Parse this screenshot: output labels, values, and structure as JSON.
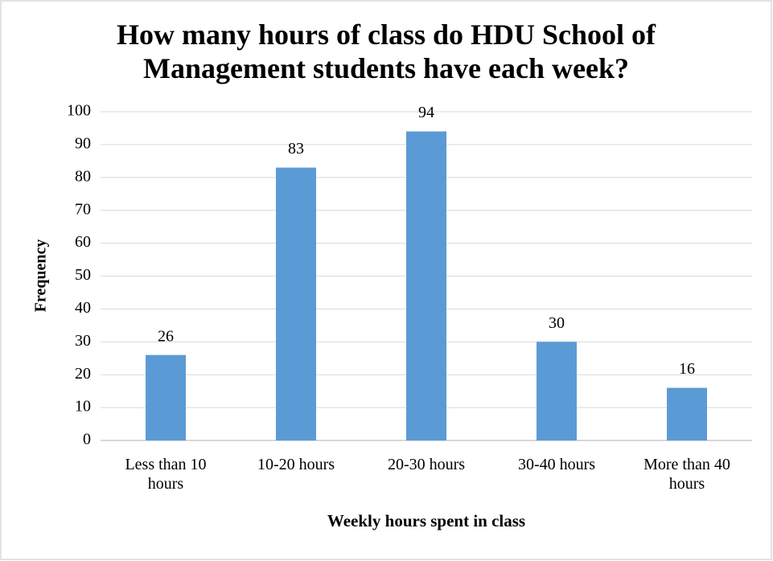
{
  "chart_data": {
    "type": "bar",
    "title": "How many hours of class do HDU School of Management students have each week?",
    "x_label": "Weekly hours spent in class",
    "y_label": "Frequency",
    "categories": [
      "Less than 10 hours",
      "10-20 hours",
      "20-30 hours",
      "30-40 hours",
      "More than 40 hours"
    ],
    "values": [
      26,
      83,
      94,
      30,
      16
    ],
    "color": "#5b9bd5",
    "ylim": [
      0,
      100
    ],
    "yticks": [
      0,
      10,
      20,
      30,
      40,
      50,
      60,
      70,
      80,
      90,
      100
    ],
    "grid": true
  }
}
